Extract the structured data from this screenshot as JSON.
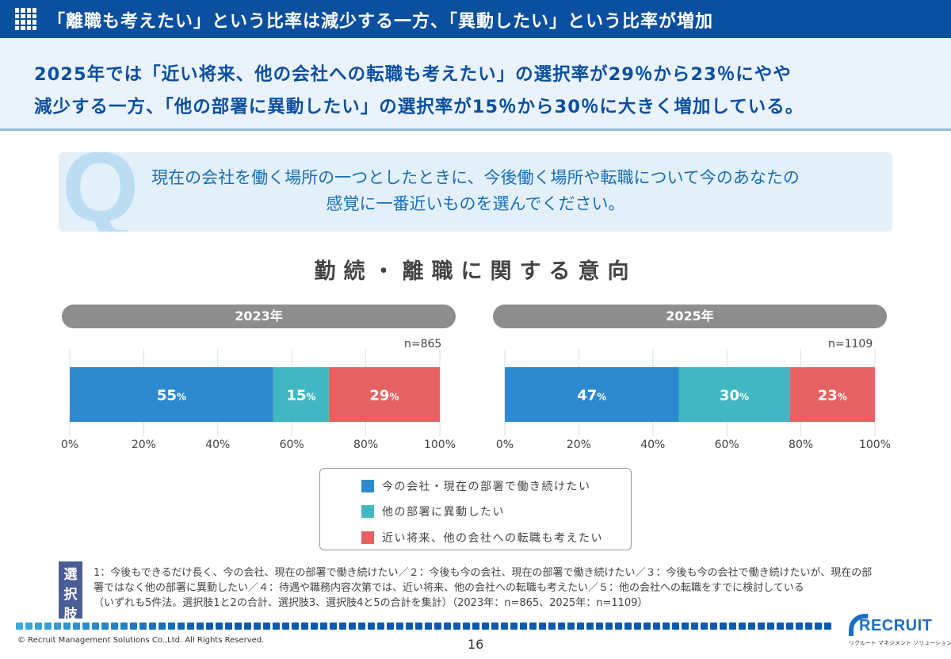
{
  "header": {
    "icon": "grid-icon",
    "title": "「離職も考えたい」という比率は減少する一方、「異動したい」という比率が増加"
  },
  "summary": {
    "line1": "2025年では「近い将来、他の会社への転職も考えたい」の選択率が29％から23％にやや",
    "line2": "減少する一方、「他の部署に異動したい」の選択率が15％から30％に大きく増加している。"
  },
  "question": {
    "mark": "Q",
    "line1": "現在の会社を働く場所の一つとしたときに、今後働く場所や転職について今のあなたの",
    "line2": "感覚に一番近いものを選んでください。"
  },
  "colors": {
    "stay": "#2e8ace",
    "transfer": "#42b7c4",
    "leave": "#e66262",
    "header": "#0b4f9f"
  },
  "chart_data": {
    "type": "bar",
    "orientation": "horizontal-stacked-100",
    "title": "勤続・離職に関する意向",
    "series_names": [
      "今の会社・現在の部署で働き続けたい",
      "他の部署に異動したい",
      "近い将来、他の会社への転職も考えたい"
    ],
    "panels": [
      {
        "year_label": "2023年",
        "n_label": "n=865",
        "values": [
          55,
          15,
          29
        ],
        "labels": [
          "55",
          "15",
          "29"
        ]
      },
      {
        "year_label": "2025年",
        "n_label": "n=1109",
        "values": [
          47,
          30,
          23
        ],
        "labels": [
          "47",
          "30",
          "23"
        ]
      }
    ],
    "xticks": [
      "0%",
      "20%",
      "40%",
      "60%",
      "80%",
      "100%"
    ],
    "xlim": [
      0,
      100
    ],
    "unit": "%",
    "grid": true,
    "legend": "bottom-center"
  },
  "legend": {
    "items": [
      {
        "label": "今の会社・現在の部署で働き続けたい",
        "color": "#2e8ace"
      },
      {
        "label": "他の部署に異動したい",
        "color": "#42b7c4"
      },
      {
        "label": "近い将来、他の会社への転職も考えたい",
        "color": "#e66262"
      }
    ]
  },
  "choices": {
    "badge": [
      "選",
      "択",
      "肢"
    ],
    "line1": "1：今後もできるだけ長く、今の会社、現在の部署で働き続けたい／２：今後も今の会社、現在の部署で働き続けたい／３：今後も今の会社で働き続けたいが、現在の部",
    "line2": "署ではなく他の部署に異動したい／４：待遇や職務内容次第では、近い将来、他の会社への転職も考えたい／５：他の会社への転職をすでに検討している",
    "line3": "（いずれも5件法。選択肢1と2の合計、選択肢3、選択肢4と5の合計を集計）（2023年：n=865、2025年：n=1109）"
  },
  "footer": {
    "copyright": "© Recruit Management Solutions Co.,Ltd. All Rights Reserved.",
    "page_number": "16",
    "logo_word": "RECRUIT",
    "logo_sub": "リクルート マネジメント ソリューションズ"
  }
}
